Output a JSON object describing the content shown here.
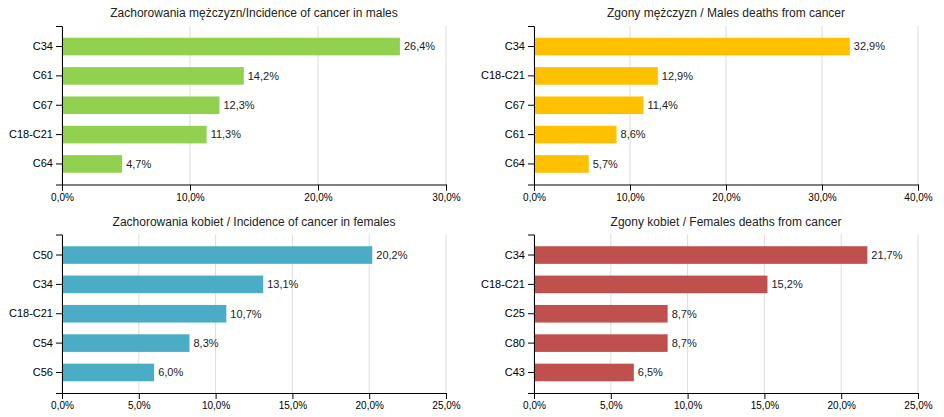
{
  "chart_data": [
    {
      "type": "bar",
      "orientation": "horizontal",
      "title": "Zachorowania mężczyzn/Incidence of cancer in males",
      "categories": [
        "C34",
        "C61",
        "C67",
        "C18-C21",
        "C64"
      ],
      "values": [
        26.4,
        14.2,
        12.3,
        11.3,
        4.7
      ],
      "value_labels": [
        "26,4%",
        "14,2%",
        "12,3%",
        "11,3%",
        "4,7%"
      ],
      "data_labels": true,
      "color": "#92D050",
      "xlim": [
        0,
        30
      ],
      "xticks": [
        {
          "value": 0,
          "label": "0,0%"
        },
        {
          "value": 10,
          "label": "10,0%"
        },
        {
          "value": 20,
          "label": "20,0%"
        },
        {
          "value": 30,
          "label": "30,0%"
        }
      ],
      "grid": true
    },
    {
      "type": "bar",
      "orientation": "horizontal",
      "title": "Zgony mężczyzn / Males deaths from cancer",
      "categories": [
        "C34",
        "C18-C21",
        "C67",
        "C61",
        "C64"
      ],
      "values": [
        32.9,
        12.9,
        11.4,
        8.6,
        5.7
      ],
      "value_labels": [
        "32,9%",
        "12,9%",
        "11,4%",
        "8,6%",
        "5,7%"
      ],
      "data_labels": true,
      "color": "#FFC000",
      "xlim": [
        0,
        40
      ],
      "xticks": [
        {
          "value": 0,
          "label": "0,0%"
        },
        {
          "value": 10,
          "label": "10,0%"
        },
        {
          "value": 20,
          "label": "20,0%"
        },
        {
          "value": 30,
          "label": "30,0%"
        },
        {
          "value": 40,
          "label": "40,0%"
        }
      ],
      "grid": true
    },
    {
      "type": "bar",
      "orientation": "horizontal",
      "title": "Zachorowania kobiet / Incidence of cancer in females",
      "categories": [
        "C50",
        "C34",
        "C18-C21",
        "C54",
        "C56"
      ],
      "values": [
        20.2,
        13.1,
        10.7,
        8.3,
        6.0
      ],
      "value_labels": [
        "20,2%",
        "13,1%",
        "10,7%",
        "8,3%",
        "6,0%"
      ],
      "data_labels": true,
      "color": "#4BACC6",
      "xlim": [
        0,
        25
      ],
      "xticks": [
        {
          "value": 0,
          "label": "0,0%"
        },
        {
          "value": 5,
          "label": "5,0%"
        },
        {
          "value": 10,
          "label": "10,0%"
        },
        {
          "value": 15,
          "label": "15,0%"
        },
        {
          "value": 20,
          "label": "20,0%"
        },
        {
          "value": 25,
          "label": "25,0%"
        }
      ],
      "grid": true
    },
    {
      "type": "bar",
      "orientation": "horizontal",
      "title": "Zgony kobiet / Females deaths from cancer",
      "categories": [
        "C34",
        "C18-C21",
        "C25",
        "C80",
        "C43"
      ],
      "values": [
        21.7,
        15.2,
        8.7,
        8.7,
        6.5
      ],
      "value_labels": [
        "21,7%",
        "15,2%",
        "8,7%",
        "8,7%",
        "6,5%"
      ],
      "data_labels": true,
      "color": "#C0504D",
      "xlim": [
        0,
        25
      ],
      "xticks": [
        {
          "value": 0,
          "label": "0,0%"
        },
        {
          "value": 5,
          "label": "5,0%"
        },
        {
          "value": 10,
          "label": "10,0%"
        },
        {
          "value": 15,
          "label": "15,0%"
        },
        {
          "value": 20,
          "label": "20,0%"
        },
        {
          "value": 25,
          "label": "25,0%"
        }
      ],
      "grid": true
    }
  ]
}
